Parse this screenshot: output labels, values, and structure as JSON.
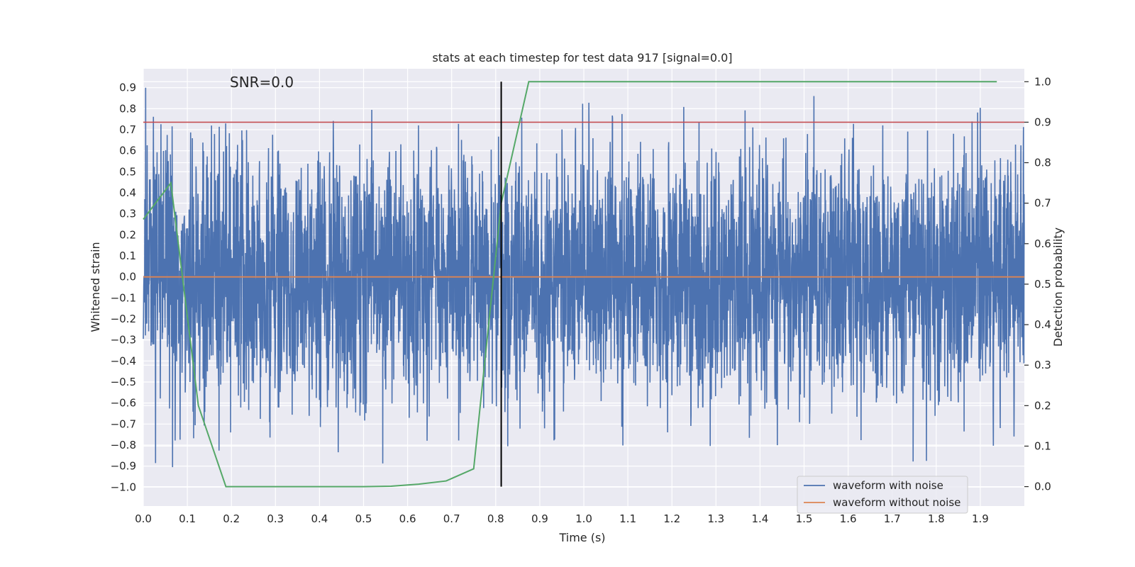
{
  "chart_data": {
    "type": "line",
    "title": "stats at each timestep for test data 917 [signal=0.0]",
    "xlabel": "Time (s)",
    "ylabel": "Whitened strain",
    "y2label": "Detection probability",
    "annotation": "SNR=0.0",
    "xlim": [
      0.0,
      2.0
    ],
    "ylim": [
      -1.09,
      0.99
    ],
    "y2lim": [
      -0.048,
      1.032
    ],
    "x_ticks": [
      "0.0",
      "0.1",
      "0.2",
      "0.3",
      "0.4",
      "0.5",
      "0.6",
      "0.7",
      "0.8",
      "0.9",
      "1.0",
      "1.1",
      "1.2",
      "1.3",
      "1.4",
      "1.5",
      "1.6",
      "1.7",
      "1.8",
      "1.9"
    ],
    "y_ticks": [
      "0.9",
      "0.8",
      "0.7",
      "0.6",
      "0.5",
      "0.4",
      "0.3",
      "0.2",
      "0.1",
      "0.0",
      "−0.1",
      "−0.2",
      "−0.3",
      "−0.4",
      "−0.5",
      "−0.6",
      "−0.7",
      "−0.8",
      "−0.9",
      "−1.0"
    ],
    "y2_ticks": [
      "1.0",
      "0.9",
      "0.8",
      "0.7",
      "0.6",
      "0.5",
      "0.4",
      "0.3",
      "0.2",
      "0.1",
      "0.0"
    ],
    "grid": true,
    "legend_position": "lower-right",
    "colors": {
      "background": "#eaeaf2",
      "grid": "#ffffff",
      "noisy": "#4c72b0",
      "clean": "#dd8452",
      "probability": "#55a868",
      "threshold": "#c44e52",
      "marker": "#000000"
    },
    "series": [
      {
        "name": "waveform with noise",
        "kind": "noise",
        "x_start": 0.0,
        "x_end": 2.0,
        "samples": 4096,
        "std": 0.3,
        "y_min": -1.0,
        "y_max": 0.9,
        "seed": 917
      },
      {
        "name": "waveform without noise",
        "kind": "constant",
        "x": [
          0.0,
          2.0
        ],
        "values": [
          0.0,
          0.0
        ]
      },
      {
        "name": "",
        "axis": "right",
        "x": [
          0.0,
          0.0625,
          0.125,
          0.1875,
          0.25,
          0.3125,
          0.375,
          0.4375,
          0.5,
          0.5625,
          0.625,
          0.6875,
          0.75,
          0.8125,
          0.875,
          0.9375,
          1.0,
          1.25,
          1.5,
          1.75,
          1.9375
        ],
        "values": [
          0.66,
          0.75,
          0.2,
          0.0,
          0.0,
          0.0,
          0.0,
          0.0,
          0.0,
          0.001,
          0.006,
          0.014,
          0.044,
          0.7,
          1.0,
          1.0,
          1.0,
          1.0,
          1.0,
          1.0,
          1.0
        ]
      }
    ],
    "threshold": {
      "axis": "right",
      "value": 0.9
    },
    "vertical_marker": {
      "x": 0.8125,
      "axis": "right",
      "from": 0.0,
      "to": 1.0
    }
  }
}
